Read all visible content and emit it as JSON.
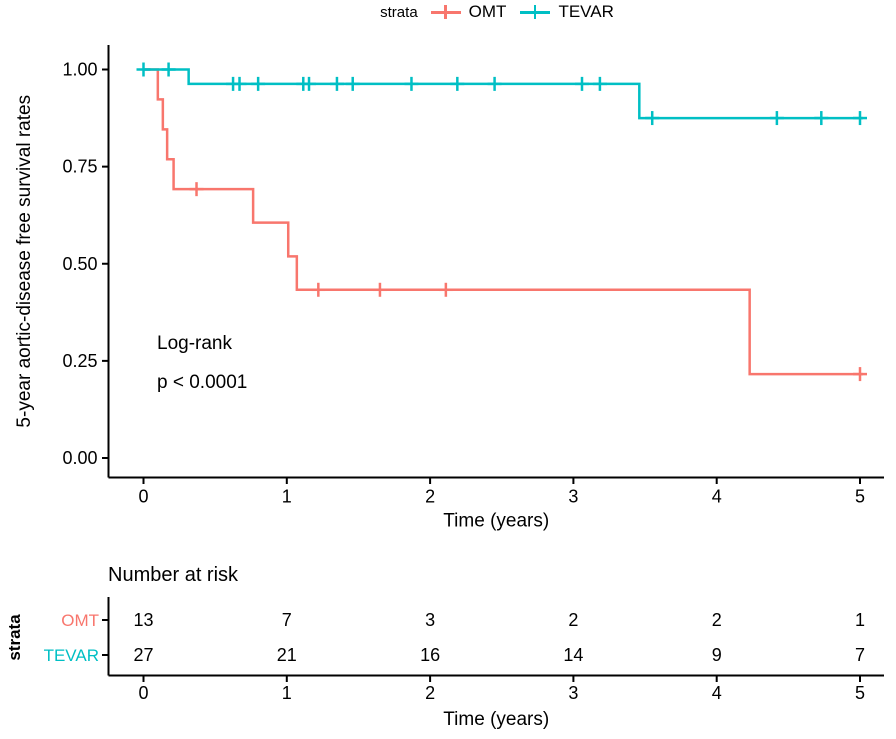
{
  "figure": {
    "background": "#ffffff"
  },
  "legend": {
    "title": "strata",
    "items": [
      {
        "label": "OMT",
        "color": "#F8766D"
      },
      {
        "label": "TEVAR",
        "color": "#00BFC4"
      }
    ]
  },
  "annotation": {
    "line1": "Log-rank",
    "line2": "p < 0.0001"
  },
  "chart_data": {
    "type": "line",
    "subtype": "kaplan-meier-step",
    "title": "",
    "xlabel": "Time (years)",
    "ylabel": "5-year aortic-disease free survival rates",
    "xlim": [
      0,
      5.05
    ],
    "ylim": [
      0,
      1
    ],
    "grid": false,
    "legend_position": "top",
    "annotations": [
      "Log-rank",
      "p < 0.0001"
    ],
    "x_ticks": [
      {
        "value": 0,
        "label": "0"
      },
      {
        "value": 1,
        "label": "1"
      },
      {
        "value": 2,
        "label": "2"
      },
      {
        "value": 3,
        "label": "3"
      },
      {
        "value": 4,
        "label": "4"
      },
      {
        "value": 5,
        "label": "5"
      }
    ],
    "y_ticks": [
      {
        "value": 1.0,
        "label": "1.00"
      },
      {
        "value": 0.75,
        "label": "0.75"
      },
      {
        "value": 0.5,
        "label": "0.50"
      },
      {
        "value": 0.25,
        "label": "0.25"
      },
      {
        "value": 0.0,
        "label": "0.00"
      }
    ],
    "series": [
      {
        "name": "OMT",
        "color": "#F8766D",
        "steps": [
          [
            0,
            1.0
          ],
          [
            0.1,
            0.923
          ],
          [
            0.135,
            0.846
          ],
          [
            0.165,
            0.769
          ],
          [
            0.21,
            0.692
          ],
          [
            0.765,
            0.606
          ],
          [
            1.01,
            0.519
          ],
          [
            1.07,
            0.433
          ],
          [
            4.23,
            0.216
          ]
        ],
        "end_time": 5.02,
        "censor_marks": [
          [
            0.37,
            0.692
          ],
          [
            1.22,
            0.433
          ],
          [
            1.65,
            0.433
          ],
          [
            2.11,
            0.433
          ],
          [
            5.0,
            0.216
          ]
        ]
      },
      {
        "name": "TEVAR",
        "color": "#00BFC4",
        "steps": [
          [
            0,
            1.0
          ],
          [
            0.315,
            0.963
          ],
          [
            3.46,
            0.875
          ]
        ],
        "end_time": 5.02,
        "censor_marks": [
          [
            0.0,
            1.0
          ],
          [
            0.175,
            1.0
          ],
          [
            0.625,
            0.963
          ],
          [
            0.67,
            0.963
          ],
          [
            0.8,
            0.963
          ],
          [
            1.115,
            0.963
          ],
          [
            1.155,
            0.963
          ],
          [
            1.35,
            0.963
          ],
          [
            1.46,
            0.963
          ],
          [
            1.87,
            0.963
          ],
          [
            2.19,
            0.963
          ],
          [
            2.45,
            0.963
          ],
          [
            3.06,
            0.963
          ],
          [
            3.185,
            0.963
          ],
          [
            3.55,
            0.875
          ],
          [
            4.42,
            0.875
          ],
          [
            4.73,
            0.875
          ],
          [
            5.0,
            0.875
          ]
        ]
      }
    ],
    "risk_table": {
      "title": "Number at risk",
      "strata_axis_label": "strata",
      "xlabel": "Time (years)",
      "x_ticks": [
        {
          "value": 0,
          "label": "0"
        },
        {
          "value": 1,
          "label": "1"
        },
        {
          "value": 2,
          "label": "2"
        },
        {
          "value": 3,
          "label": "3"
        },
        {
          "value": 4,
          "label": "4"
        },
        {
          "value": 5,
          "label": "5"
        }
      ],
      "rows": [
        {
          "label": "OMT",
          "color": "#F8766D",
          "counts": [
            13,
            7,
            3,
            2,
            2,
            1
          ]
        },
        {
          "label": "TEVAR",
          "color": "#00BFC4",
          "counts": [
            27,
            21,
            16,
            14,
            9,
            7
          ]
        }
      ]
    }
  }
}
